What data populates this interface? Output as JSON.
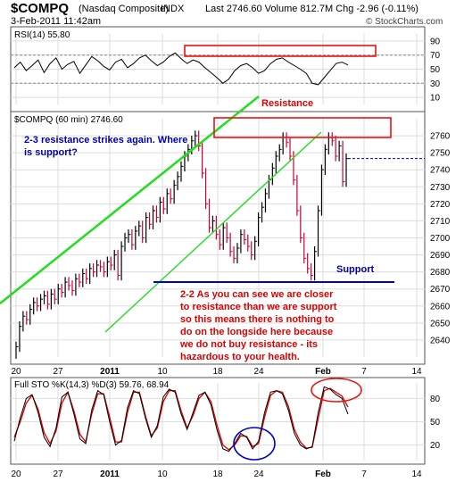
{
  "header": {
    "symbol": "$COMPQ",
    "name": "(Nasdaq Composite)",
    "exchange": "INDX",
    "datetime": "3-Feb-2011 11:42am",
    "quote": "Last 2746.60  Volume 812.7M  Chg -2.96 (-0.11%)",
    "source": "© StockCharts.com"
  },
  "colors": {
    "price_up": "#000000",
    "price_down": "#cc0033",
    "trendline": "#22dd22",
    "annotation_box": "#ee1111",
    "support_line": "#0000cc",
    "annotation_text_red": "#dd0000",
    "annotation_text_blue": "#0000aa",
    "sto_k": "#000000",
    "sto_d": "#dd0000"
  },
  "annotations": {
    "resistance": "Resistance",
    "support": "Support",
    "note_23": "2-3 resistance strikes again. Where is support?",
    "note_22": "2-2 As you can see we are closer to resistance than we are support so this means there is nothing to do on the longside here because we do not buy resistance - its hazardous to your health."
  },
  "chart_data": [
    {
      "type": "line",
      "title": "RSI(14) 55.80",
      "x_ticks": [
        "20",
        "27",
        "2011",
        "10",
        "18",
        "24",
        "Feb",
        "7",
        "14"
      ],
      "ylim": [
        0,
        100
      ],
      "y_ticks": [
        10,
        30,
        50,
        70,
        90
      ],
      "overbought": 70,
      "oversold": 30,
      "series": [
        {
          "name": "RSI(14)",
          "values": [
            52,
            60,
            48,
            55,
            63,
            45,
            58,
            66,
            50,
            57,
            61,
            44,
            56,
            68,
            62,
            54,
            49,
            60,
            64,
            52,
            58,
            66,
            70,
            62,
            55,
            60,
            68,
            73,
            65,
            58,
            63,
            60,
            52,
            45,
            38,
            30,
            36,
            48,
            55,
            58,
            52,
            44,
            48,
            58,
            64,
            66,
            60,
            55,
            50,
            44,
            30,
            28,
            38,
            48,
            58,
            60,
            56
          ]
        }
      ]
    },
    {
      "type": "line",
      "title": "$COMPQ (60 min) 2746.60",
      "x_ticks": [
        "20",
        "27",
        "2011",
        "10",
        "18",
        "24",
        "Feb",
        "7",
        "14"
      ],
      "ylim": [
        2630,
        2770
      ],
      "y_ticks": [
        2640,
        2650,
        2660,
        2670,
        2680,
        2690,
        2700,
        2710,
        2720,
        2730,
        2740,
        2750,
        2760
      ],
      "last": 2746.6,
      "resistance_zone": [
        2757,
        2767
      ],
      "support_level": 2676,
      "series": [
        {
          "name": "$COMPQ",
          "values": [
            2636,
            2648,
            2654,
            2652,
            2658,
            2662,
            2660,
            2664,
            2666,
            2661,
            2667,
            2664,
            2670,
            2668,
            2674,
            2672,
            2669,
            2676,
            2674,
            2679,
            2676,
            2682,
            2680,
            2684,
            2683,
            2680,
            2686,
            2684,
            2690,
            2678,
            2695,
            2700,
            2702,
            2696,
            2704,
            2707,
            2700,
            2712,
            2708,
            2716,
            2712,
            2721,
            2717,
            2726,
            2723,
            2731,
            2736,
            2742,
            2748,
            2752,
            2757,
            2760,
            2754,
            2738,
            2720,
            2706,
            2710,
            2702,
            2696,
            2706,
            2700,
            2692,
            2688,
            2694,
            2702,
            2699,
            2695,
            2690,
            2698,
            2712,
            2718,
            2726,
            2734,
            2741,
            2748,
            2752,
            2759,
            2756,
            2748,
            2734,
            2716,
            2700,
            2688,
            2682,
            2678,
            2692,
            2716,
            2740,
            2752,
            2759,
            2757,
            2748,
            2754,
            2733,
            2746.6
          ]
        }
      ]
    },
    {
      "type": "line",
      "title": "Full STO %K(14,3) %D(3) 59.76, 68.94",
      "x_ticks": [
        "20",
        "27",
        "2011",
        "10",
        "18",
        "24",
        "Feb",
        "7",
        "14"
      ],
      "ylim": [
        0,
        100
      ],
      "y_ticks": [
        20,
        50,
        80
      ],
      "series": [
        {
          "name": "%K(14,3)",
          "values": [
            25,
            55,
            80,
            85,
            62,
            30,
            18,
            42,
            82,
            88,
            60,
            28,
            22,
            65,
            90,
            85,
            50,
            20,
            26,
            68,
            90,
            86,
            55,
            30,
            45,
            82,
            92,
            88,
            60,
            40,
            62,
            84,
            88,
            72,
            40,
            15,
            12,
            22,
            35,
            30,
            15,
            25,
            62,
            88,
            90,
            86,
            65,
            35,
            20,
            15,
            18,
            62,
            95,
            92,
            85,
            80,
            59.76
          ]
        },
        {
          "name": "%D(3)",
          "values": [
            30,
            50,
            74,
            84,
            66,
            36,
            22,
            38,
            74,
            88,
            64,
            34,
            24,
            60,
            86,
            86,
            56,
            24,
            24,
            62,
            88,
            88,
            58,
            32,
            42,
            76,
            90,
            90,
            64,
            42,
            58,
            80,
            88,
            76,
            46,
            20,
            14,
            20,
            32,
            31,
            18,
            22,
            56,
            84,
            90,
            88,
            70,
            40,
            24,
            16,
            17,
            54,
            90,
            93,
            88,
            83,
            68.94
          ]
        }
      ]
    }
  ]
}
